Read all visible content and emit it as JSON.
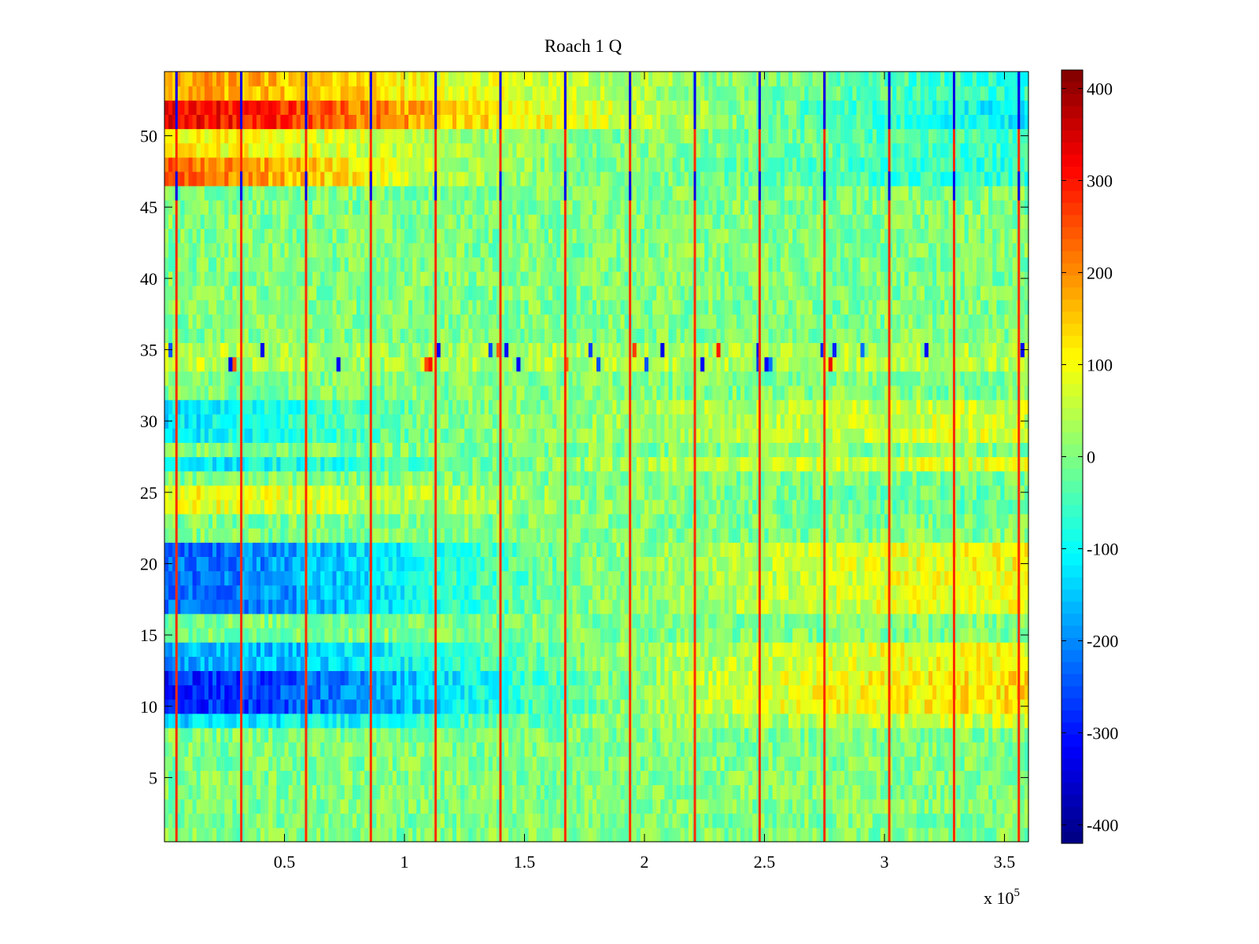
{
  "chart_data": {
    "type": "heatmap",
    "title": "Roach 1 Q",
    "xlabel": "",
    "ylabel": "",
    "x_multiplier_label": "x 10",
    "x_multiplier_exponent": "5",
    "xlim": [
      0,
      3.6
    ],
    "ylim": [
      0.5,
      54.5
    ],
    "x_ticks": [
      {
        "value": 0.5,
        "label": "0.5"
      },
      {
        "value": 1,
        "label": "1"
      },
      {
        "value": 1.5,
        "label": "1.5"
      },
      {
        "value": 2,
        "label": "2"
      },
      {
        "value": 2.5,
        "label": "2.5"
      },
      {
        "value": 3,
        "label": "3"
      },
      {
        "value": 3.5,
        "label": "3.5"
      }
    ],
    "y_ticks": [
      {
        "value": 5,
        "label": "5"
      },
      {
        "value": 10,
        "label": "10"
      },
      {
        "value": 15,
        "label": "15"
      },
      {
        "value": 20,
        "label": "20"
      },
      {
        "value": 25,
        "label": "25"
      },
      {
        "value": 30,
        "label": "30"
      },
      {
        "value": 35,
        "label": "35"
      },
      {
        "value": 40,
        "label": "40"
      },
      {
        "value": 45,
        "label": "45"
      },
      {
        "value": 50,
        "label": "50"
      }
    ],
    "colorbar": {
      "colormap": "jet",
      "range": [
        -420,
        420
      ],
      "ticks": [
        {
          "value": 400,
          "label": "400"
        },
        {
          "value": 300,
          "label": "300"
        },
        {
          "value": 200,
          "label": "200"
        },
        {
          "value": 100,
          "label": "100"
        },
        {
          "value": 0,
          "label": "0"
        },
        {
          "value": -100,
          "label": "-100"
        },
        {
          "value": -200,
          "label": "-200"
        },
        {
          "value": -300,
          "label": "-300"
        },
        {
          "value": -400,
          "label": "-400"
        }
      ]
    },
    "columns": 216,
    "rows": 54,
    "bias_nodes_x": [
      0,
      0.3,
      0.6,
      0.9,
      1.2,
      1.5,
      1.8,
      2.1,
      2.4,
      2.7,
      3.0,
      3.3,
      3.6
    ],
    "row_bias": [
      {
        "rows": [
          51,
          52
        ],
        "values": [
          320,
          300,
          260,
          200,
          150,
          100,
          80,
          40,
          0,
          -40,
          -60,
          -90,
          -110
        ]
      },
      {
        "rows": [
          53,
          54
        ],
        "values": [
          180,
          170,
          150,
          120,
          90,
          70,
          50,
          20,
          0,
          -20,
          -40,
          -60,
          -70
        ]
      },
      {
        "rows": [
          49,
          50
        ],
        "values": [
          110,
          100,
          80,
          60,
          40,
          20,
          0,
          0,
          -10,
          -20,
          -40,
          -50,
          -60
        ]
      },
      {
        "rows": [
          47,
          48
        ],
        "values": [
          230,
          200,
          150,
          90,
          40,
          10,
          0,
          -10,
          -20,
          -30,
          -50,
          -60,
          -70
        ]
      },
      {
        "rows": [
          34,
          35
        ],
        "values": [
          60,
          50,
          40,
          30,
          30,
          30,
          40,
          40,
          40,
          40,
          40,
          40,
          40
        ]
      },
      {
        "rows": [
          29,
          30,
          31
        ],
        "values": [
          -120,
          -100,
          -60,
          -30,
          0,
          10,
          20,
          30,
          40,
          50,
          60,
          70,
          70
        ]
      },
      {
        "rows": [
          27
        ],
        "values": [
          -120,
          -110,
          -80,
          -50,
          -20,
          0,
          20,
          40,
          50,
          60,
          70,
          80,
          80
        ]
      },
      {
        "rows": [
          24,
          25
        ],
        "values": [
          100,
          90,
          70,
          50,
          30,
          20,
          10,
          0,
          -10,
          -10,
          -20,
          -20,
          -20
        ]
      },
      {
        "rows": [
          17,
          18,
          19,
          20,
          21
        ],
        "values": [
          -230,
          -210,
          -170,
          -120,
          -70,
          -30,
          0,
          20,
          40,
          60,
          80,
          90,
          100
        ]
      },
      {
        "rows": [
          13,
          14
        ],
        "values": [
          -180,
          -170,
          -150,
          -110,
          -70,
          -30,
          0,
          30,
          50,
          70,
          90,
          100,
          100
        ]
      },
      {
        "rows": [
          10,
          11,
          12
        ],
        "values": [
          -290,
          -270,
          -230,
          -180,
          -120,
          -60,
          -10,
          30,
          60,
          90,
          110,
          120,
          130
        ]
      },
      {
        "rows": [
          9
        ],
        "values": [
          -140,
          -130,
          -110,
          -80,
          -50,
          -20,
          0,
          20,
          30,
          40,
          50,
          60,
          60
        ]
      }
    ],
    "spike_columns_x": [
      0.05,
      0.32,
      0.59,
      0.86,
      1.13,
      1.4,
      1.67,
      1.94,
      2.21,
      2.48,
      2.75,
      3.02,
      3.29,
      3.56
    ],
    "spike_value": 280,
    "negative_spike_rows": [
      46,
      47,
      51,
      52,
      53,
      54
    ],
    "negative_spike_value": -330
  }
}
